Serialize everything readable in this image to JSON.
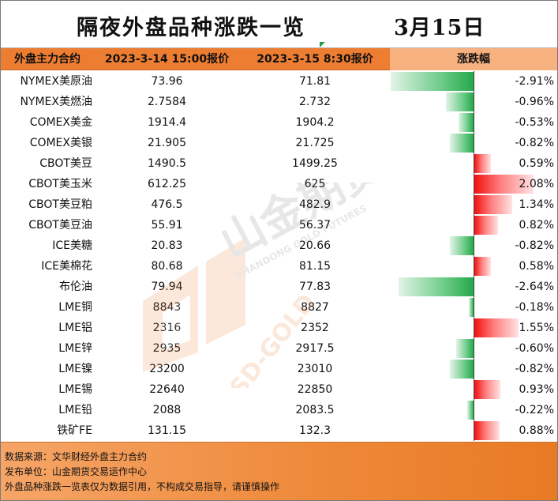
{
  "title": "隔夜外盘品种涨跌一览",
  "date": "3月15日",
  "header": {
    "contract": "外盘主力合约",
    "prev_quote": "2023-3-14 15:00报价",
    "curr_quote": "2023-3-15 8:30报价",
    "change": "涨跌幅"
  },
  "colors": {
    "header": "#ed7d31",
    "up": "#f20f0f",
    "down": "#23a84a",
    "footer": "#ee8a3b"
  },
  "rows": [
    {
      "name": "NYMEX美原油",
      "prev": "73.96",
      "curr": "71.81",
      "pct_label": "-2.91%",
      "pct": -2.91
    },
    {
      "name": "NYMEX美燃油",
      "prev": "2.7584",
      "curr": "2.732",
      "pct_label": "-0.96%",
      "pct": -0.96
    },
    {
      "name": "COMEX美金",
      "prev": "1914.4",
      "curr": "1904.2",
      "pct_label": "-0.53%",
      "pct": -0.53
    },
    {
      "name": "COMEX美银",
      "prev": "21.905",
      "curr": "21.725",
      "pct_label": "-0.82%",
      "pct": -0.82
    },
    {
      "name": "CBOT美豆",
      "prev": "1490.5",
      "curr": "1499.25",
      "pct_label": "0.59%",
      "pct": 0.59
    },
    {
      "name": "CBOT美玉米",
      "prev": "612.25",
      "curr": "625",
      "pct_label": "2.08%",
      "pct": 2.08
    },
    {
      "name": "CBOT美豆粕",
      "prev": "476.5",
      "curr": "482.9",
      "pct_label": "1.34%",
      "pct": 1.34
    },
    {
      "name": "CBOT美豆油",
      "prev": "55.91",
      "curr": "56.37",
      "pct_label": "0.82%",
      "pct": 0.82
    },
    {
      "name": "ICE美糖",
      "prev": "20.83",
      "curr": "20.66",
      "pct_label": "-0.82%",
      "pct": -0.82
    },
    {
      "name": "ICE美棉花",
      "prev": "80.68",
      "curr": "81.15",
      "pct_label": "0.58%",
      "pct": 0.58
    },
    {
      "name": "布伦油",
      "prev": "79.94",
      "curr": "77.83",
      "pct_label": "-2.64%",
      "pct": -2.64
    },
    {
      "name": "LME铜",
      "prev": "8843",
      "curr": "8827",
      "pct_label": "-0.18%",
      "pct": -0.18
    },
    {
      "name": "LME铝",
      "prev": "2316",
      "curr": "2352",
      "pct_label": "1.55%",
      "pct": 1.55
    },
    {
      "name": "LME锌",
      "prev": "2935",
      "curr": "2917.5",
      "pct_label": "-0.60%",
      "pct": -0.6
    },
    {
      "name": "LME镍",
      "prev": "23200",
      "curr": "23010",
      "pct_label": "-0.82%",
      "pct": -0.82
    },
    {
      "name": "LME锡",
      "prev": "22640",
      "curr": "22850",
      "pct_label": "0.93%",
      "pct": 0.93
    },
    {
      "name": "LME铅",
      "prev": "2088",
      "curr": "2083.5",
      "pct_label": "-0.22%",
      "pct": -0.22
    },
    {
      "name": "铁矿FE",
      "prev": "131.15",
      "curr": "132.3",
      "pct_label": "0.88%",
      "pct": 0.88
    }
  ],
  "footer": {
    "source": "数据来源：文华财经外盘主力合约",
    "publisher": "发布单位：山金期货交易运作中心",
    "disclaimer": "外盘品种涨跌一览表仅为数据引用，不构成交易指导，请谨慎操作"
  },
  "watermark": {
    "brand_cn": "山金期货",
    "brand_en": "SHANDONG GOLD FUTURES",
    "brand_short": "SD-GOLD"
  }
}
